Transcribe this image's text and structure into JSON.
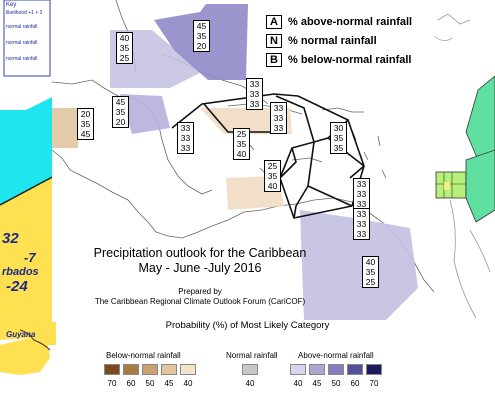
{
  "left_panel": {
    "key_title": "Key",
    "key_lines": [
      "likelihood +1 + 2",
      "normal rainfall",
      "normal rainfall",
      "normal rainfall"
    ],
    "values": [
      "32",
      "-7",
      "rbados",
      "-24"
    ],
    "place": "Guyana"
  },
  "legend": {
    "items": [
      {
        "key": "A",
        "label": "% above-normal rainfall"
      },
      {
        "key": "N",
        "label": "% normal rainfall"
      },
      {
        "key": "B",
        "label": "% below-normal rainfall"
      }
    ]
  },
  "forecasts": [
    {
      "a": "40",
      "n": "35",
      "b": "25"
    },
    {
      "a": "45",
      "n": "35",
      "b": "20"
    },
    {
      "a": "45",
      "n": "35",
      "b": "20"
    },
    {
      "a": "20",
      "n": "35",
      "b": "45"
    },
    {
      "a": "33",
      "n": "33",
      "b": "33"
    },
    {
      "a": "33",
      "n": "33",
      "b": "33"
    },
    {
      "a": "33",
      "n": "33",
      "b": "33"
    },
    {
      "a": "25",
      "n": "35",
      "b": "40"
    },
    {
      "a": "30",
      "n": "35",
      "b": "35"
    },
    {
      "a": "25",
      "n": "35",
      "b": "40"
    },
    {
      "a": "33",
      "n": "33",
      "b": "33"
    },
    {
      "a": "33",
      "n": "33",
      "b": "33"
    },
    {
      "a": "40",
      "n": "35",
      "b": "25"
    }
  ],
  "title": {
    "line1": "Precipitation outlook for the Caribbean",
    "line2": "May - June -July 2016",
    "prepared_by": "Prepared by",
    "organization": "The Caribbean Regional Climate Outlook Forum (CariCOF)"
  },
  "scale": {
    "title": "Probability (%) of Most Likely Category",
    "below": {
      "label": "Below-normal rainfall",
      "ticks": [
        "70",
        "60",
        "50",
        "45",
        "40"
      ],
      "colors": [
        "#7a4a1c",
        "#a87a44",
        "#c9a072",
        "#e2c59e",
        "#f4e4cc"
      ]
    },
    "normal": {
      "label": "Normal rainfall",
      "ticks": [
        "40"
      ],
      "colors": [
        "#c8c8c8"
      ]
    },
    "above": {
      "label": "Above-normal rainfall",
      "ticks": [
        "40",
        "45",
        "50",
        "60",
        "70"
      ],
      "colors": [
        "#d6d4ee",
        "#aaa6d6",
        "#8480c0",
        "#54509a",
        "#1e1a5e"
      ]
    }
  }
}
